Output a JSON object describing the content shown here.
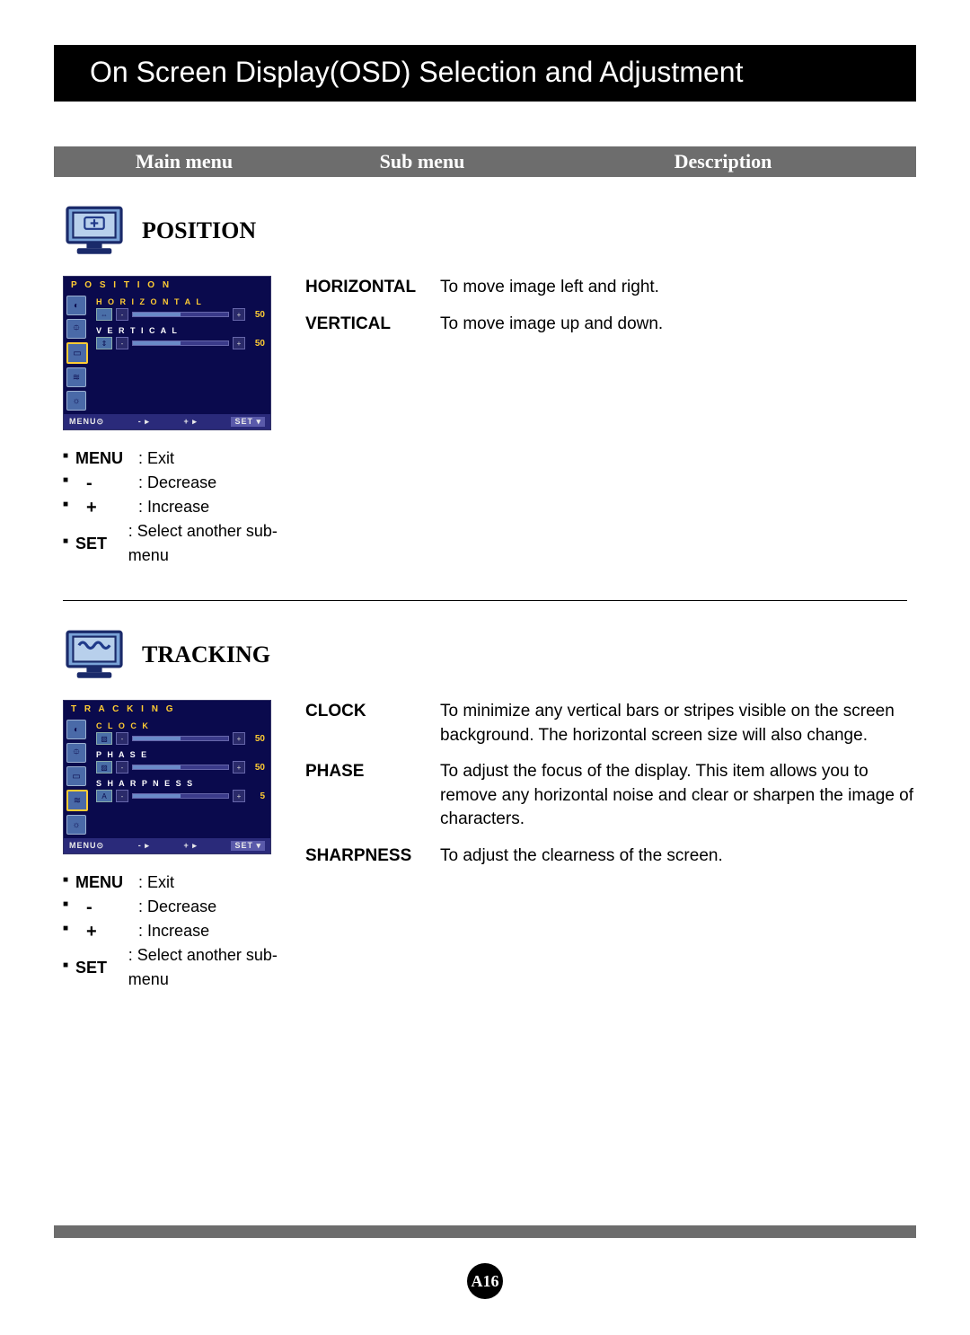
{
  "title": "On Screen Display(OSD) Selection and Adjustment",
  "header": {
    "main": "Main menu",
    "sub": "Sub menu",
    "desc": "Description"
  },
  "colors": {
    "header_bg": "#6d6d6d",
    "osd_bg": "#0a0a4d",
    "osd_accent": "#ffcc33"
  },
  "sections": [
    {
      "title": "POSITION",
      "icon": "position",
      "osd": {
        "title": "P O S I T I O N",
        "icons_selected_index": 2,
        "items": [
          {
            "label": "HORIZONTAL",
            "value": 50,
            "fill_pct": 50,
            "label_color": "accent",
            "mini": "⇔"
          },
          {
            "label": "VERTICAL",
            "value": 50,
            "fill_pct": 50,
            "label_color": "white",
            "mini": "⇕"
          }
        ],
        "footer": {
          "menu": "MENU",
          "minus": "-",
          "plus": "+",
          "set": "SET"
        }
      },
      "desc": [
        {
          "sub": "HORIZONTAL",
          "text": "To move image left and right."
        },
        {
          "sub": "VERTICAL",
          "text": "To move image up and down."
        }
      ],
      "legend": [
        {
          "key": "MENU",
          "text": ": Exit"
        },
        {
          "sym": "-",
          "text": ": Decrease"
        },
        {
          "sym": "+",
          "text": ": Increase"
        },
        {
          "key": "SET",
          "text": ": Select another sub-menu"
        }
      ]
    },
    {
      "title": "TRACKING",
      "icon": "tracking",
      "osd": {
        "title": "T R A C K I N G",
        "icons_selected_index": 3,
        "items": [
          {
            "label": "CLOCK",
            "value": 50,
            "fill_pct": 50,
            "label_color": "accent",
            "mini": "▧"
          },
          {
            "label": "PHASE",
            "value": 50,
            "fill_pct": 50,
            "label_color": "white",
            "mini": "▨"
          },
          {
            "label": "SHARPNESS",
            "value": 5,
            "fill_pct": 50,
            "label_color": "white",
            "mini": "A"
          }
        ],
        "footer": {
          "menu": "MENU",
          "minus": "-",
          "plus": "+",
          "set": "SET"
        }
      },
      "desc": [
        {
          "sub": "CLOCK",
          "text": "To minimize any vertical bars or stripes visible on the screen background. The horizontal screen size will also change."
        },
        {
          "sub": "PHASE",
          "text": "To adjust the focus of the display. This item allows you to remove any horizontal noise and clear or sharpen the image of characters."
        },
        {
          "sub": "SHARPNESS",
          "text": "To adjust the clearness of the screen."
        }
      ],
      "legend": [
        {
          "key": "MENU",
          "text": ": Exit"
        },
        {
          "sym": "-",
          "text": ": Decrease"
        },
        {
          "sym": "+",
          "text": ": Increase"
        },
        {
          "key": "SET",
          "text": ": Select another sub-menu"
        }
      ]
    }
  ],
  "page_number": "A16"
}
